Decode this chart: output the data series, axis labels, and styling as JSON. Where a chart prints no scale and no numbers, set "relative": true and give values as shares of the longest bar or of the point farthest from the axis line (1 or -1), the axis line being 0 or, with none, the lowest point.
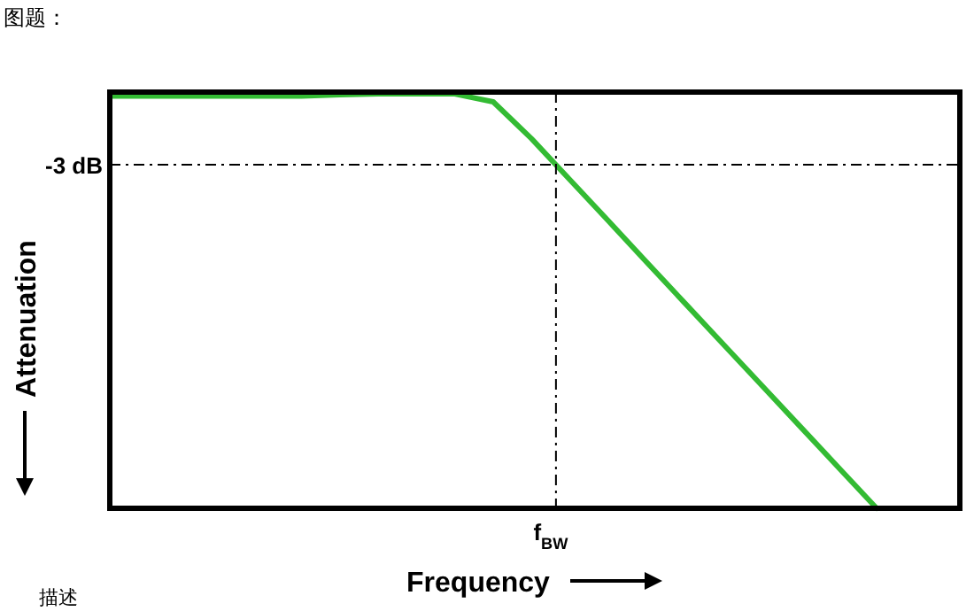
{
  "chart_data": {
    "type": "line",
    "title": "图题：",
    "xlabel": "Frequency",
    "ylabel": "Attenuation",
    "relative": true,
    "marker": "none",
    "line_style": "solid",
    "categories": [
      null,
      null,
      null,
      null,
      null,
      null,
      null,
      null,
      null,
      null,
      null,
      null,
      null,
      null,
      null,
      null,
      null,
      null,
      null,
      null,
      null,
      null,
      null
    ],
    "series": [
      {
        "color": "#33bb33",
        "values": [
          0.995,
          0.995,
          0.995,
          0.995,
          0.995,
          0.995,
          0.998,
          1,
          1,
          1,
          0.981,
          0.892,
          0.793,
          0.694,
          0.594,
          0.495,
          0.396,
          0.297,
          0.198,
          0.099,
          0,
          null,
          null
        ]
      }
    ],
    "ref_lines": [
      {
        "axis": "y",
        "value": 0.829,
        "label": "-3 dB",
        "color": "#000000",
        "line_style": "dashdot"
      }
    ],
    "annotations": [
      "f$_{BW}$",
      "描述"
    ]
  }
}
